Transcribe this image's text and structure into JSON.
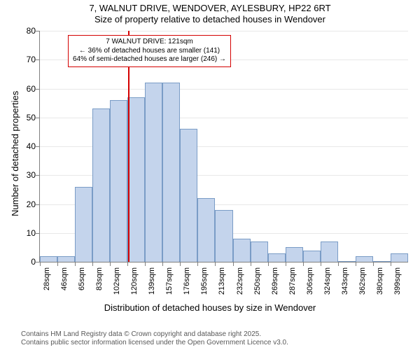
{
  "title_line1": "7, WALNUT DRIVE, WENDOVER, AYLESBURY, HP22 6RT",
  "title_line2": "Size of property relative to detached houses in Wendover",
  "chart": {
    "type": "histogram",
    "x_categories": [
      "28sqm",
      "46sqm",
      "65sqm",
      "83sqm",
      "102sqm",
      "120sqm",
      "139sqm",
      "157sqm",
      "176sqm",
      "195sqm",
      "213sqm",
      "232sqm",
      "250sqm",
      "269sqm",
      "287sqm",
      "306sqm",
      "324sqm",
      "343sqm",
      "362sqm",
      "380sqm",
      "399sqm"
    ],
    "x_step_sqm": 18.5,
    "x_min_sqm": 28,
    "values": [
      2,
      2,
      26,
      53,
      56,
      57,
      62,
      62,
      46,
      22,
      18,
      8,
      7,
      3,
      5,
      4,
      7,
      0,
      2,
      0,
      3
    ],
    "bar_fill": "#c4d4ec",
    "bar_stroke": "#7a9cc6",
    "y_min": 0,
    "y_max": 80,
    "y_tick_step": 10,
    "y_label": "Number of detached properties",
    "x_label": "Distribution of detached houses by size in Wendover",
    "label_fontsize": 13,
    "tick_fontsize": 11,
    "grid_color": "#e8e8e8",
    "axis_color": "#808080",
    "background_color": "#ffffff",
    "bar_width_ratio": 1.0,
    "reference": {
      "value_sqm": 121,
      "line_color": "#d40000",
      "line_width": 2,
      "callout_border": "#d40000",
      "callout_bg": "#ffffff",
      "callout_lines": [
        "7 WALNUT DRIVE: 121sqm",
        "← 36% of detached houses are smaller (141)",
        "64% of semi-detached houses are larger (246) →"
      ]
    }
  },
  "footer_line1": "Contains HM Land Registry data © Crown copyright and database right 2025.",
  "footer_line2": "Contains public sector information licensed under the Open Government Licence v3.0."
}
